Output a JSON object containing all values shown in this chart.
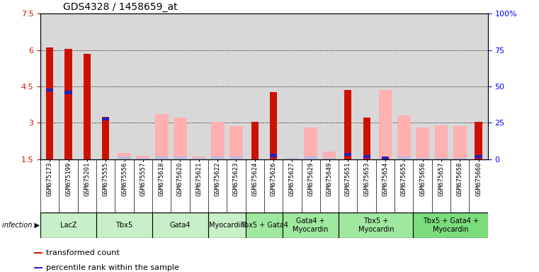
{
  "title": "GDS4328 / 1458659_at",
  "samples": [
    "GSM675173",
    "GSM675199",
    "GSM675201",
    "GSM675555",
    "GSM675556",
    "GSM675557",
    "GSM675618",
    "GSM675620",
    "GSM675621",
    "GSM675622",
    "GSM675623",
    "GSM675624",
    "GSM675626",
    "GSM675627",
    "GSM675629",
    "GSM675649",
    "GSM675651",
    "GSM675653",
    "GSM675654",
    "GSM675655",
    "GSM675656",
    "GSM675657",
    "GSM675658",
    "GSM675660"
  ],
  "red_values": [
    6.1,
    6.05,
    5.85,
    3.25,
    0,
    0,
    0,
    0,
    0,
    0,
    0,
    3.05,
    4.25,
    0,
    0,
    0,
    4.35,
    3.2,
    0,
    0,
    0,
    0,
    0,
    3.05
  ],
  "pink_values": [
    0,
    0,
    0,
    0,
    1.75,
    1.65,
    3.35,
    3.2,
    1.6,
    3.05,
    2.85,
    0,
    0,
    1.55,
    2.8,
    1.8,
    0,
    0,
    4.35,
    3.3,
    2.8,
    2.9,
    2.85,
    0
  ],
  "blue_values": [
    4.35,
    4.25,
    0,
    3.15,
    0,
    0,
    0,
    0,
    0,
    0,
    0,
    0,
    1.65,
    0,
    0,
    0,
    1.7,
    1.6,
    1.55,
    0,
    0,
    0,
    0,
    1.6
  ],
  "lb_values": [
    0,
    0,
    0,
    0,
    1.6,
    1.55,
    1.6,
    1.6,
    1.55,
    1.6,
    1.6,
    0,
    0,
    1.55,
    1.6,
    1.55,
    0,
    0,
    0,
    1.6,
    1.55,
    1.55,
    1.55,
    0
  ],
  "groups": [
    {
      "label": "LacZ",
      "start": 0,
      "end": 3,
      "color": "#c8f0c8"
    },
    {
      "label": "Tbx5",
      "start": 3,
      "end": 6,
      "color": "#c8f0c8"
    },
    {
      "label": "Gata4",
      "start": 6,
      "end": 9,
      "color": "#c8f0c8"
    },
    {
      "label": "Myocardin",
      "start": 9,
      "end": 11,
      "color": "#c8f0c8"
    },
    {
      "label": "Tbx5 + Gata4",
      "start": 11,
      "end": 13,
      "color": "#a0e8a0"
    },
    {
      "label": "Gata4 +\nMyocardin",
      "start": 13,
      "end": 16,
      "color": "#a0e8a0"
    },
    {
      "label": "Tbx5 +\nMyocardin",
      "start": 16,
      "end": 20,
      "color": "#a0e8a0"
    },
    {
      "label": "Tbx5 + Gata4 +\nMyocardin",
      "start": 20,
      "end": 24,
      "color": "#7bdc7b"
    }
  ],
  "ylim_left": [
    1.5,
    7.5
  ],
  "yticks_left": [
    1.5,
    3.0,
    4.5,
    6.0,
    7.5
  ],
  "ytick_labels_left": [
    "1.5",
    "3",
    "4.5",
    "6",
    "7.5"
  ],
  "ylim_right": [
    0,
    100
  ],
  "yticks_right": [
    0,
    25,
    50,
    75,
    100
  ],
  "ytick_labels_right": [
    "0",
    "25",
    "50",
    "75",
    "100%"
  ],
  "red_color": "#cc1100",
  "pink_color": "#ffb0b0",
  "blue_color": "#2222bb",
  "lb_color": "#bbbbdd",
  "bg_color": "#d8d8d8",
  "grid_lines": [
    3.0,
    4.5,
    6.0
  ],
  "bar_width": 0.55
}
